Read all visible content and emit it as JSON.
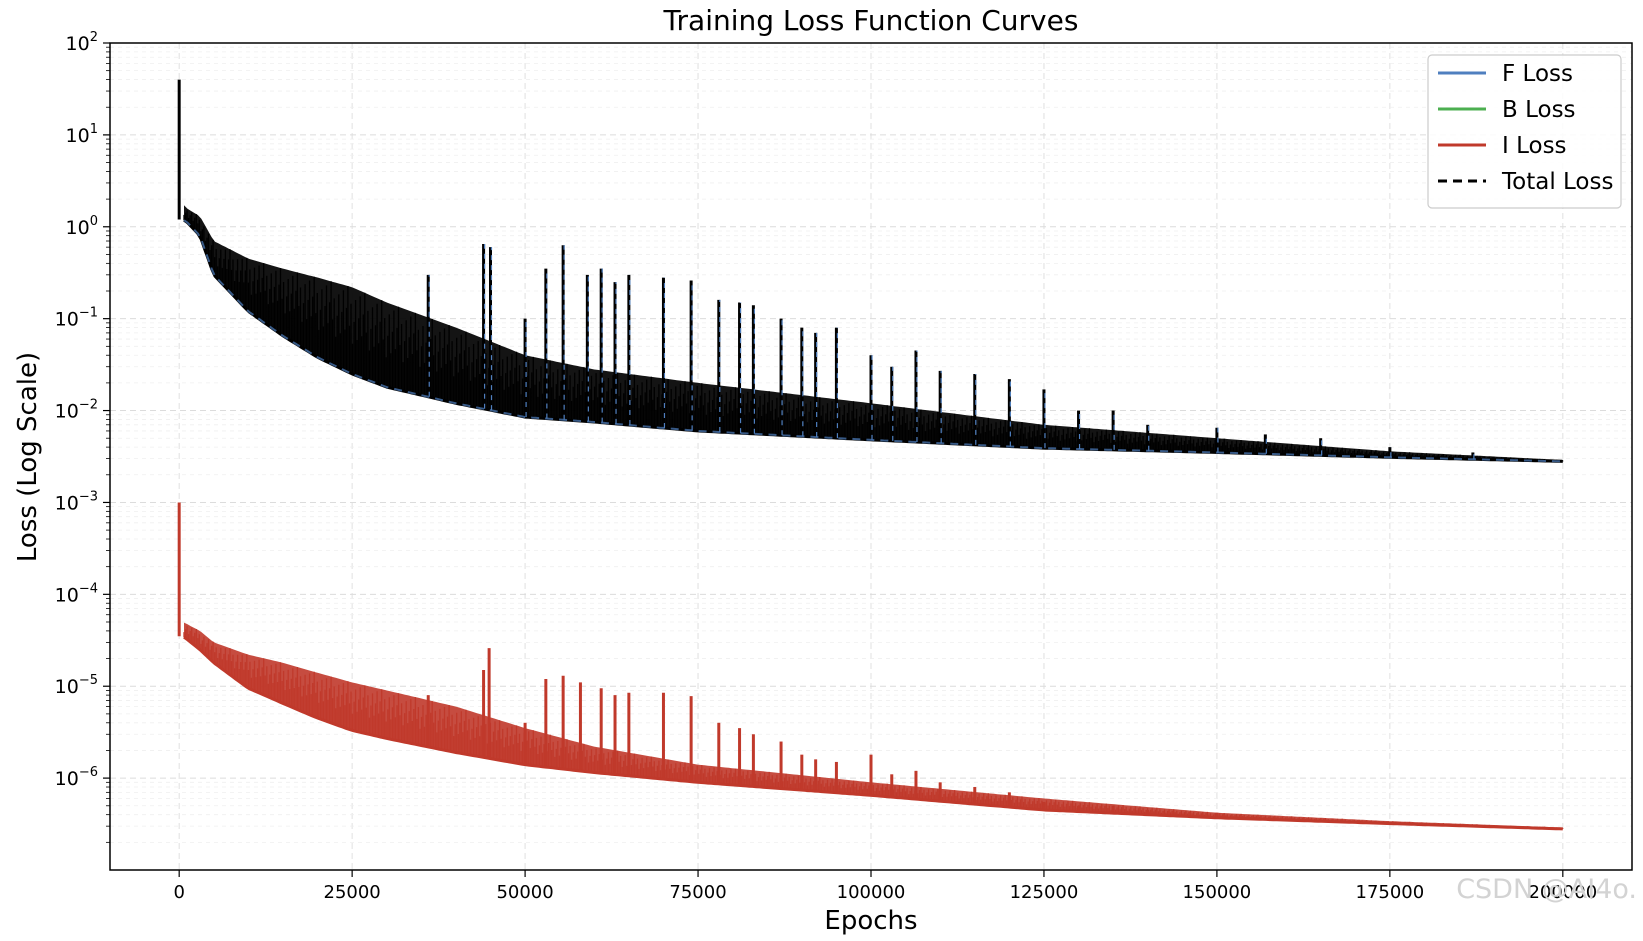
{
  "chart_data": {
    "type": "line",
    "title": "Training Loss Function Curves",
    "xlabel": "Epochs",
    "ylabel": "Loss (Log Scale)",
    "yscale": "log",
    "xlim": [
      -10000,
      210000
    ],
    "ylim_log10": [
      -7.0,
      2.0
    ],
    "x_ticks": [
      0,
      25000,
      50000,
      75000,
      100000,
      125000,
      150000,
      175000,
      200000
    ],
    "x_tick_labels": [
      "0",
      "25000",
      "50000",
      "75000",
      "100000",
      "125000",
      "150000",
      "175000",
      "200000"
    ],
    "y_ticks_log10": [
      2,
      1,
      0,
      -1,
      -2,
      -3,
      -4,
      -5,
      -6
    ],
    "grid": true,
    "legend_position": "top-right",
    "colors": {
      "f": "#4f7fbf",
      "b": "#4caf50",
      "i": "#c0392b",
      "total": "#000000"
    },
    "series": [
      {
        "name": "F Loss",
        "color": "#4f7fbf",
        "style": "solid",
        "x": [
          0,
          300,
          500,
          1000,
          3000,
          5000,
          10000,
          15000,
          20000,
          25000,
          30000,
          40000,
          50000,
          60000,
          75000,
          100000,
          125000,
          150000,
          175000,
          200000
        ],
        "y": [
          40,
          1.5,
          1.2,
          1.15,
          0.8,
          0.3,
          0.12,
          0.065,
          0.038,
          0.025,
          0.018,
          0.012,
          0.0085,
          0.0075,
          0.006,
          0.0048,
          0.0039,
          0.0035,
          0.0031,
          0.0028
        ],
        "upper": [
          40,
          2.0,
          1.8,
          1.6,
          1.3,
          0.7,
          0.45,
          0.35,
          0.28,
          0.22,
          0.15,
          0.08,
          0.04,
          0.028,
          0.02,
          0.012,
          0.007,
          0.005,
          0.0036,
          0.0029
        ],
        "spikes": [
          [
            36000,
            0.3
          ],
          [
            44000,
            0.65
          ],
          [
            45000,
            0.6
          ],
          [
            50000,
            0.1
          ],
          [
            53000,
            0.35
          ],
          [
            55500,
            0.63
          ],
          [
            59000,
            0.3
          ],
          [
            61000,
            0.35
          ],
          [
            63000,
            0.25
          ],
          [
            65000,
            0.3
          ],
          [
            70000,
            0.28
          ],
          [
            74000,
            0.26
          ],
          [
            78000,
            0.16
          ],
          [
            81000,
            0.15
          ],
          [
            83000,
            0.14
          ],
          [
            87000,
            0.1
          ],
          [
            90000,
            0.08
          ],
          [
            92000,
            0.07
          ],
          [
            95000,
            0.08
          ],
          [
            100000,
            0.04
          ],
          [
            103000,
            0.03
          ],
          [
            106500,
            0.045
          ],
          [
            110000,
            0.027
          ],
          [
            115000,
            0.025
          ],
          [
            120000,
            0.022
          ],
          [
            125000,
            0.017
          ],
          [
            130000,
            0.01
          ],
          [
            135000,
            0.01
          ],
          [
            140000,
            0.007
          ],
          [
            150000,
            0.0065
          ],
          [
            157000,
            0.0055
          ],
          [
            165000,
            0.005
          ],
          [
            175000,
            0.004
          ],
          [
            187000,
            0.0035
          ]
        ]
      },
      {
        "name": "B Loss",
        "color": "#4caf50",
        "style": "solid",
        "x": [],
        "y": []
      },
      {
        "name": "I Loss",
        "color": "#c0392b",
        "style": "solid",
        "x": [
          0,
          300,
          500,
          1000,
          3000,
          5000,
          10000,
          15000,
          20000,
          25000,
          30000,
          40000,
          50000,
          60000,
          75000,
          100000,
          125000,
          150000,
          175000,
          200000
        ],
        "y": [
          0.001,
          4e-05,
          3.5e-05,
          3.3e-05,
          2.5e-05,
          1.8e-05,
          9.5e-06,
          6.5e-06,
          4.5e-06,
          3.3e-06,
          2.7e-06,
          1.9e-06,
          1.4e-06,
          1.15e-06,
          9e-07,
          6.5e-07,
          4.5e-07,
          3.7e-07,
          3.2e-07,
          2.8e-07
        ],
        "upper": [
          0.001,
          5e-05,
          5e-05,
          4.8e-05,
          4e-05,
          3e-05,
          2.2e-05,
          1.8e-05,
          1.4e-05,
          1.1e-05,
          9e-06,
          6e-06,
          3.5e-06,
          2.2e-06,
          1.4e-06,
          9e-07,
          6e-07,
          4.2e-07,
          3.4e-07,
          2.9e-07
        ],
        "spikes": [
          [
            36000,
            8e-06
          ],
          [
            44000,
            1.5e-05
          ],
          [
            44800,
            2.6e-05
          ],
          [
            50000,
            4e-06
          ],
          [
            53000,
            1.2e-05
          ],
          [
            55500,
            1.3e-05
          ],
          [
            58000,
            1.1e-05
          ],
          [
            61000,
            9.5e-06
          ],
          [
            63000,
            8e-06
          ],
          [
            65000,
            8.5e-06
          ],
          [
            70000,
            8.5e-06
          ],
          [
            74000,
            7.8e-06
          ],
          [
            78000,
            4e-06
          ],
          [
            81000,
            3.5e-06
          ],
          [
            83000,
            3e-06
          ],
          [
            87000,
            2.5e-06
          ],
          [
            90000,
            1.8e-06
          ],
          [
            92000,
            1.6e-06
          ],
          [
            95000,
            1.5e-06
          ],
          [
            100000,
            1.8e-06
          ],
          [
            103000,
            1.1e-06
          ],
          [
            106500,
            1.2e-06
          ],
          [
            110000,
            9e-07
          ],
          [
            115000,
            8e-07
          ],
          [
            120000,
            7e-07
          ],
          [
            125000,
            5.5e-07
          ],
          [
            130000,
            5e-07
          ],
          [
            135000,
            5e-07
          ],
          [
            140000,
            4.5e-07
          ],
          [
            150000,
            4.2e-07
          ]
        ]
      },
      {
        "name": "Total Loss",
        "color": "#000000",
        "style": "dashed",
        "x": [
          0,
          300,
          500,
          1000,
          3000,
          5000,
          10000,
          15000,
          20000,
          25000,
          30000,
          40000,
          50000,
          60000,
          75000,
          100000,
          125000,
          150000,
          175000,
          200000
        ],
        "y": [
          40,
          1.5,
          1.2,
          1.15,
          0.8,
          0.3,
          0.12,
          0.065,
          0.038,
          0.025,
          0.018,
          0.012,
          0.0085,
          0.0075,
          0.006,
          0.0048,
          0.0039,
          0.0035,
          0.0031,
          0.0028
        ]
      }
    ],
    "legend": [
      "F Loss",
      "B Loss",
      "I Loss",
      "Total Loss"
    ]
  },
  "watermark": "CSDN @AI4o."
}
